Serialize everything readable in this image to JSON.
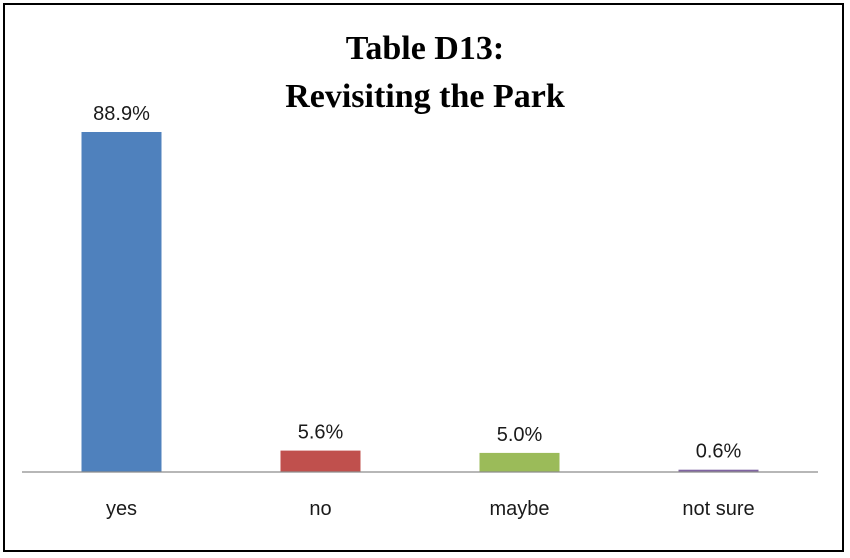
{
  "chart_data": {
    "type": "bar",
    "title": [
      "Table D13:",
      "Revisiting the Park"
    ],
    "categories": [
      "yes",
      "no",
      "maybe",
      "not sure"
    ],
    "values": [
      88.9,
      5.6,
      5.0,
      0.6
    ],
    "data_labels": [
      "88.9%",
      "5.6%",
      "5.0%",
      "0.6%"
    ],
    "colors": [
      "#4F81BD",
      "#C0504D",
      "#9BBB59",
      "#8064A2"
    ],
    "ylim": [
      0,
      100
    ],
    "grid": false,
    "legend": "none"
  }
}
